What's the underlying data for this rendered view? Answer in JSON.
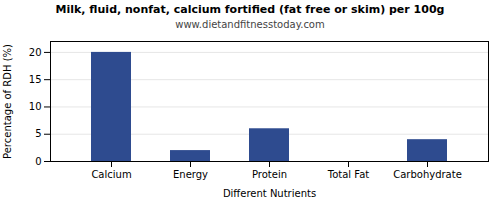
{
  "chart_data": {
    "type": "bar",
    "title": "Milk, fluid, nonfat, calcium fortified (fat free or skim) per 100g",
    "subtitle": "www.dietandfitnesstoday.com",
    "categories": [
      "Calcium",
      "Energy",
      "Protein",
      "Total Fat",
      "Carbohydrate"
    ],
    "values": [
      20,
      2,
      6,
      0,
      4
    ],
    "color": "#2e4b8f",
    "xlabel": "Different Nutrients",
    "ylabel": "Percentage of RDH (%)",
    "ylim": [
      0,
      22
    ],
    "yticks": [
      0,
      5,
      10,
      15,
      20
    ],
    "grid": true
  }
}
